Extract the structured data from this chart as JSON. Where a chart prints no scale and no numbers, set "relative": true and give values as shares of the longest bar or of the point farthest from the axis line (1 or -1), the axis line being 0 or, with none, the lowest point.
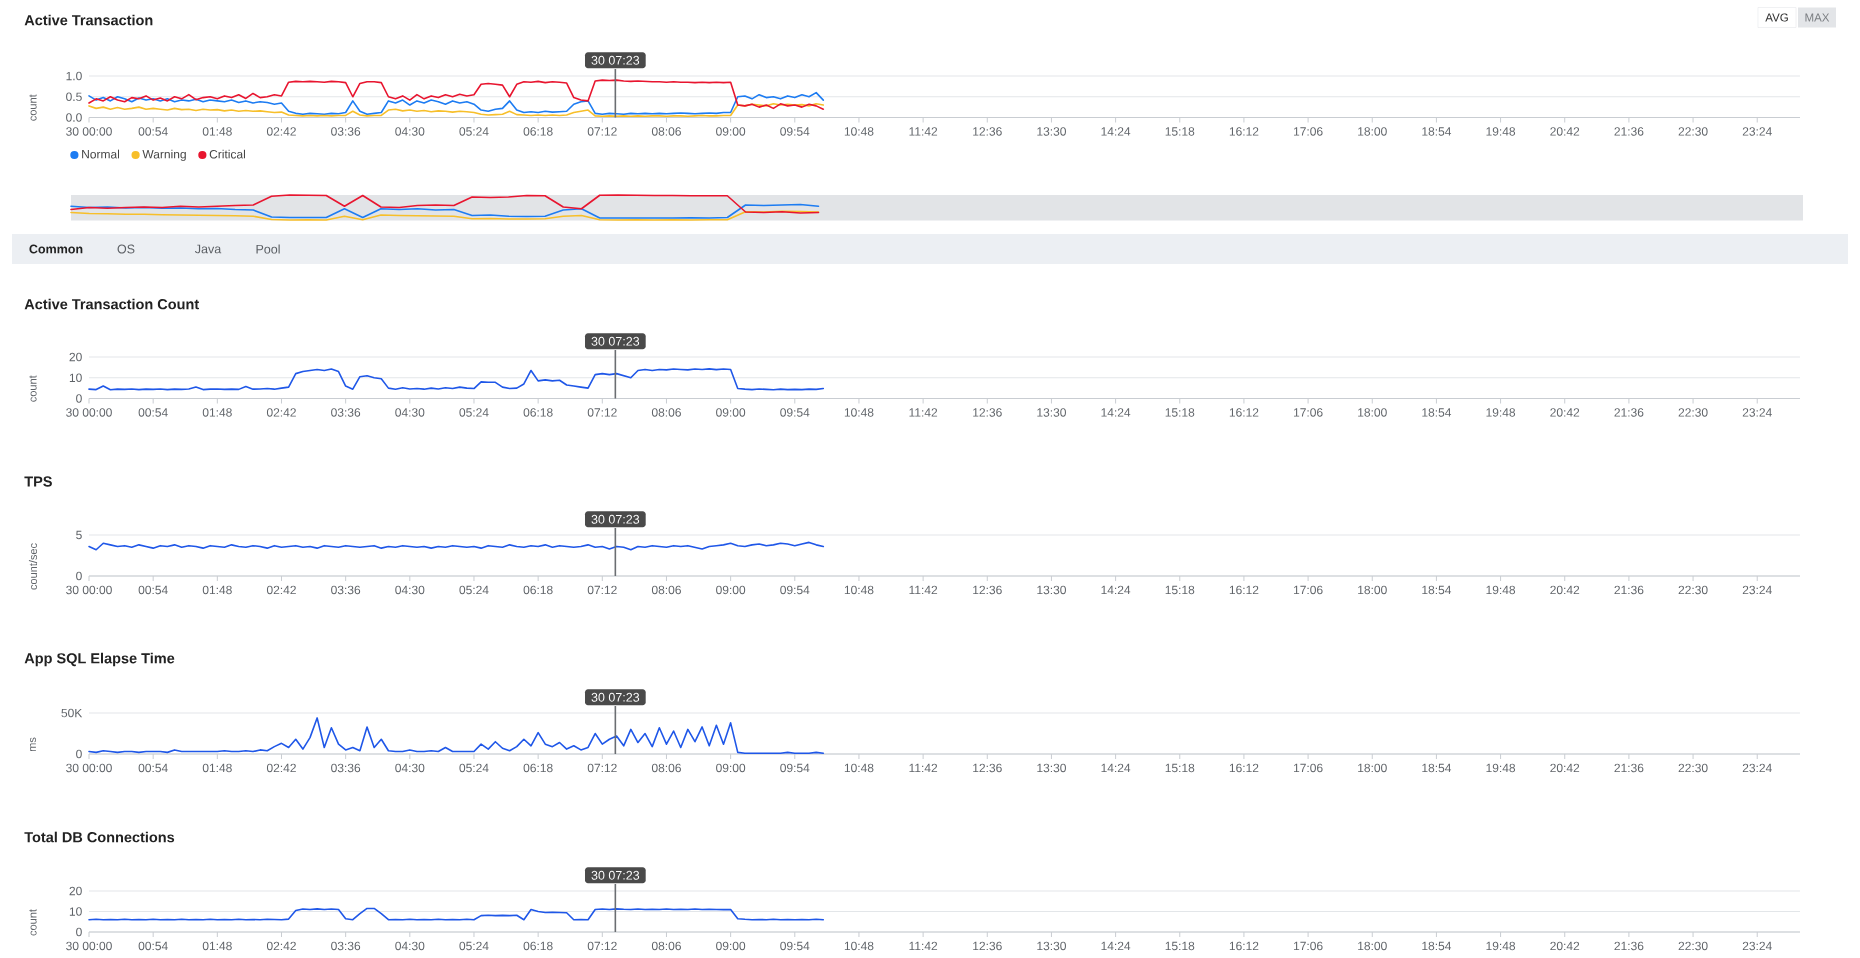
{
  "chart_data": [
    {
      "type": "line",
      "title": "Active Transaction",
      "ylabel": "count",
      "x": [
        0,
        0.1,
        0.2,
        0.3,
        0.4,
        0.5,
        0.6,
        0.7,
        0.8,
        0.9,
        1,
        1.1,
        1.2,
        1.3,
        1.4,
        1.5,
        1.6,
        1.7,
        1.8,
        1.9,
        2,
        2.1,
        2.2,
        2.3,
        2.4,
        2.5,
        2.6,
        2.7,
        2.8,
        2.9,
        3,
        3.1,
        3.2,
        3.3,
        3.4,
        3.5,
        3.6,
        3.7,
        3.8,
        3.9,
        4,
        4.1,
        4.2,
        4.3,
        4.4,
        4.5,
        4.6,
        4.7,
        4.8,
        4.9,
        5,
        5.1,
        5.2,
        5.3,
        5.4,
        5.5,
        5.6,
        5.7,
        5.8,
        5.9,
        6,
        6.1,
        6.2,
        6.3,
        6.4,
        6.5,
        6.6,
        6.7,
        6.8,
        6.9,
        7,
        7.1,
        7.2,
        7.3,
        7.4,
        7.5,
        7.6,
        7.7,
        7.8,
        7.9,
        8,
        8.1,
        8.2,
        8.3,
        8.4,
        8.5,
        8.6,
        8.7,
        8.8,
        8.9,
        9,
        9.1,
        9.2,
        9.3,
        9.4,
        9.5,
        9.6,
        9.7,
        9.8,
        9.9,
        10,
        10.1,
        10.2,
        10.3
      ],
      "xlim": [
        0,
        24
      ],
      "xticks": [
        {
          "value": 0,
          "label": "30 00:00"
        },
        {
          "value": 0.9,
          "label": "00:54"
        },
        {
          "value": 1.8,
          "label": "01:48"
        },
        {
          "value": 2.7,
          "label": "02:42"
        },
        {
          "value": 3.6,
          "label": "03:36"
        },
        {
          "value": 4.5,
          "label": "04:30"
        },
        {
          "value": 5.4,
          "label": "05:24"
        },
        {
          "value": 6.3,
          "label": "06:18"
        },
        {
          "value": 7.2,
          "label": "07:12"
        },
        {
          "value": 8.1,
          "label": "08:06"
        },
        {
          "value": 9,
          "label": "09:00"
        },
        {
          "value": 9.9,
          "label": "09:54"
        },
        {
          "value": 10.8,
          "label": "10:48"
        },
        {
          "value": 11.7,
          "label": "11:42"
        },
        {
          "value": 12.6,
          "label": "12:36"
        },
        {
          "value": 13.5,
          "label": "13:30"
        },
        {
          "value": 14.4,
          "label": "14:24"
        },
        {
          "value": 15.3,
          "label": "15:18"
        },
        {
          "value": 16.2,
          "label": "16:12"
        },
        {
          "value": 17.1,
          "label": "17:06"
        },
        {
          "value": 18,
          "label": "18:00"
        },
        {
          "value": 18.9,
          "label": "18:54"
        },
        {
          "value": 19.8,
          "label": "19:48"
        },
        {
          "value": 20.7,
          "label": "20:42"
        },
        {
          "value": 21.6,
          "label": "21:36"
        },
        {
          "value": 22.5,
          "label": "22:30"
        },
        {
          "value": 23.4,
          "label": "23:24"
        }
      ],
      "ylim": [
        0,
        1
      ],
      "yticks": [
        {
          "value": 0,
          "label": "0.0"
        },
        0.5,
        {
          "value": 1,
          "label": "1.0"
        }
      ],
      "grid": "y",
      "legend": "bottom left",
      "series": [
        {
          "name": "Normal",
          "color": "#1d7cf2",
          "values": [
            0.52,
            0.42,
            0.48,
            0.4,
            0.5,
            0.45,
            0.38,
            0.47,
            0.42,
            0.45,
            0.4,
            0.45,
            0.38,
            0.42,
            0.4,
            0.44,
            0.38,
            0.42,
            0.4,
            0.38,
            0.42,
            0.36,
            0.4,
            0.35,
            0.38,
            0.36,
            0.32,
            0.35,
            0.15,
            0.1,
            0.08,
            0.1,
            0.09,
            0.08,
            0.1,
            0.09,
            0.12,
            0.4,
            0.15,
            0.08,
            0.1,
            0.12,
            0.4,
            0.35,
            0.42,
            0.3,
            0.4,
            0.35,
            0.42,
            0.38,
            0.32,
            0.4,
            0.35,
            0.38,
            0.32,
            0.18,
            0.15,
            0.2,
            0.22,
            0.4,
            0.18,
            0.12,
            0.14,
            0.12,
            0.15,
            0.13,
            0.14,
            0.15,
            0.32,
            0.38,
            0.4,
            0.1,
            0.08,
            0.1,
            0.09,
            0.08,
            0.1,
            0.09,
            0.1,
            0.09,
            0.1,
            0.09,
            0.1,
            0.11,
            0.1,
            0.09,
            0.1,
            0.11,
            0.1,
            0.12,
            0.12,
            0.5,
            0.52,
            0.45,
            0.55,
            0.48,
            0.5,
            0.45,
            0.52,
            0.48,
            0.55,
            0.5,
            0.6,
            0.42
          ]
        },
        {
          "name": "Warning",
          "color": "#f7bf2a",
          "values": [
            0.28,
            0.22,
            0.25,
            0.2,
            0.24,
            0.2,
            0.22,
            0.25,
            0.2,
            0.22,
            0.2,
            0.18,
            0.22,
            0.19,
            0.2,
            0.17,
            0.2,
            0.18,
            0.19,
            0.16,
            0.18,
            0.15,
            0.17,
            0.15,
            0.16,
            0.14,
            0.12,
            0.13,
            0.06,
            0.05,
            0.04,
            0.05,
            0.04,
            0.05,
            0.04,
            0.05,
            0.05,
            0.15,
            0.06,
            0.04,
            0.05,
            0.05,
            0.18,
            0.2,
            0.16,
            0.18,
            0.15,
            0.17,
            0.14,
            0.16,
            0.15,
            0.13,
            0.15,
            0.14,
            0.12,
            0.08,
            0.06,
            0.07,
            0.08,
            0.15,
            0.07,
            0.06,
            0.05,
            0.06,
            0.05,
            0.06,
            0.05,
            0.06,
            0.12,
            0.15,
            0.18,
            0.04,
            0.03,
            0.04,
            0.03,
            0.04,
            0.03,
            0.04,
            0.03,
            0.04,
            0.04,
            0.03,
            0.04,
            0.04,
            0.03,
            0.04,
            0.05,
            0.04,
            0.04,
            0.05,
            0.05,
            0.3,
            0.28,
            0.32,
            0.3,
            0.28,
            0.33,
            0.3,
            0.32,
            0.3,
            0.31,
            0.28,
            0.33,
            0.3
          ]
        },
        {
          "name": "Critical",
          "color": "#e8152f",
          "values": [
            0.35,
            0.45,
            0.4,
            0.5,
            0.42,
            0.38,
            0.48,
            0.45,
            0.52,
            0.42,
            0.47,
            0.4,
            0.5,
            0.45,
            0.55,
            0.43,
            0.48,
            0.5,
            0.45,
            0.52,
            0.48,
            0.55,
            0.46,
            0.58,
            0.48,
            0.5,
            0.55,
            0.52,
            0.85,
            0.87,
            0.86,
            0.87,
            0.86,
            0.85,
            0.87,
            0.86,
            0.84,
            0.5,
            0.82,
            0.86,
            0.86,
            0.84,
            0.5,
            0.45,
            0.52,
            0.42,
            0.55,
            0.45,
            0.52,
            0.48,
            0.55,
            0.5,
            0.56,
            0.52,
            0.55,
            0.8,
            0.82,
            0.8,
            0.78,
            0.5,
            0.8,
            0.86,
            0.85,
            0.87,
            0.84,
            0.86,
            0.85,
            0.83,
            0.48,
            0.42,
            0.4,
            0.88,
            0.9,
            0.89,
            0.9,
            0.88,
            0.87,
            0.88,
            0.87,
            0.86,
            0.86,
            0.85,
            0.86,
            0.85,
            0.85,
            0.84,
            0.85,
            0.84,
            0.85,
            0.84,
            0.85,
            0.3,
            0.28,
            0.32,
            0.25,
            0.3,
            0.22,
            0.33,
            0.28,
            0.3,
            0.25,
            0.32,
            0.28,
            0.2
          ]
        }
      ],
      "ref_lines": [
        {
          "axis": "x",
          "value": 7.383,
          "label": "30 07:23",
          "color": "#6b6e72"
        }
      ],
      "annotations": [
        "AVG",
        "MAX"
      ]
    },
    {
      "type": "line",
      "relative": true,
      "tick_labels": false,
      "categories": [
        null,
        null,
        null,
        null,
        null,
        null,
        null,
        null,
        null,
        null,
        null,
        null,
        null,
        null,
        null,
        null,
        null,
        null,
        null,
        null,
        null,
        null,
        null,
        null,
        null,
        null,
        null,
        null,
        null,
        null,
        null,
        null,
        null,
        null,
        null,
        null,
        null,
        null,
        null,
        null,
        null,
        null,
        null,
        null,
        null,
        null,
        null,
        null,
        null,
        null,
        null,
        null,
        null,
        null,
        null,
        null,
        null,
        null,
        null,
        null,
        null,
        null,
        null,
        null,
        null,
        null,
        null,
        null,
        null,
        null,
        null,
        null,
        null,
        null,
        null,
        null,
        null,
        null,
        null,
        null,
        null,
        null,
        null,
        null,
        null,
        null,
        null,
        null,
        null,
        null,
        null,
        null,
        null,
        null,
        null,
        null
      ],
      "series": [
        {
          "color": "#1d7cf2",
          "values": [
            0.55,
            0.5,
            0.52,
            0.48,
            0.5,
            0.47,
            0.48,
            0.45,
            0.46,
            0.42,
            0.4,
            0.12,
            0.1,
            0.1,
            0.1,
            0.45,
            0.1,
            0.45,
            0.42,
            0.45,
            0.4,
            0.42,
            0.18,
            0.2,
            0.15,
            0.14,
            0.15,
            0.4,
            0.45,
            0.08,
            0.08,
            0.08,
            0.08,
            0.08,
            0.09,
            0.08,
            0.1,
            0.6,
            0.58,
            0.6,
            0.62,
            0.55,
            null,
            null,
            null,
            null,
            null,
            null,
            null,
            null,
            null,
            null,
            null,
            null,
            null,
            null,
            null,
            null,
            null,
            null,
            null,
            null,
            null,
            null,
            null,
            null,
            null,
            null,
            null,
            null,
            null,
            null,
            null,
            null,
            null,
            null,
            null,
            null,
            null,
            null,
            null,
            null,
            null,
            null,
            null,
            null,
            null,
            null,
            null,
            null,
            null,
            null,
            null,
            null,
            null,
            null
          ]
        },
        {
          "color": "#f7bf2a",
          "values": [
            0.3,
            0.26,
            0.25,
            0.23,
            0.23,
            0.21,
            0.2,
            0.19,
            0.18,
            0.17,
            0.15,
            0.02,
            0,
            0.01,
            0,
            0.15,
            0.01,
            0.2,
            0.18,
            0.17,
            0.16,
            0.15,
            0.05,
            0.06,
            0.04,
            0.04,
            0.05,
            0.15,
            0.18,
            0.01,
            0,
            0.01,
            0,
            0.01,
            0,
            0.01,
            0.01,
            0.33,
            0.32,
            0.35,
            0.34,
            0.32,
            null,
            null,
            null,
            null,
            null,
            null,
            null,
            null,
            null,
            null,
            null,
            null,
            null,
            null,
            null,
            null,
            null,
            null,
            null,
            null,
            null,
            null,
            null,
            null,
            null,
            null,
            null,
            null,
            null,
            null,
            null,
            null,
            null,
            null,
            null,
            null,
            null,
            null,
            null,
            null,
            null,
            null,
            null,
            null,
            null,
            null,
            null,
            null,
            null,
            null,
            null,
            null,
            null,
            null
          ]
        },
        {
          "color": "#e8152f",
          "values": [
            0.42,
            0.5,
            0.47,
            0.5,
            0.52,
            0.5,
            0.55,
            0.52,
            0.55,
            0.58,
            0.6,
            0.95,
            1,
            0.99,
            0.98,
            0.55,
            0.98,
            0.52,
            0.5,
            0.58,
            0.6,
            0.58,
            0.92,
            0.9,
            0.92,
            0.98,
            0.97,
            0.52,
            0.45,
            0.99,
            1,
            0.99,
            0.98,
            0.98,
            0.97,
            0.97,
            0.97,
            0.32,
            0.3,
            0.33,
            0.28,
            0.3,
            null,
            null,
            null,
            null,
            null,
            null,
            null,
            null,
            null,
            null,
            null,
            null,
            null,
            null,
            null,
            null,
            null,
            null,
            null,
            null,
            null,
            null,
            null,
            null,
            null,
            null,
            null,
            null,
            null,
            null,
            null,
            null,
            null,
            null,
            null,
            null,
            null,
            null,
            null,
            null,
            null,
            null,
            null,
            null,
            null,
            null,
            null,
            null,
            null,
            null,
            null,
            null,
            null,
            null
          ]
        }
      ]
    },
    {
      "type": "line",
      "title": "Active Transaction Count",
      "ylabel": "count",
      "x": [
        0,
        0.1,
        0.2,
        0.3,
        0.4,
        0.5,
        0.6,
        0.7,
        0.8,
        0.9,
        1,
        1.1,
        1.2,
        1.3,
        1.4,
        1.5,
        1.6,
        1.7,
        1.8,
        1.9,
        2,
        2.1,
        2.2,
        2.3,
        2.4,
        2.5,
        2.6,
        2.7,
        2.8,
        2.9,
        3,
        3.1,
        3.2,
        3.3,
        3.4,
        3.5,
        3.6,
        3.7,
        3.8,
        3.9,
        4,
        4.1,
        4.2,
        4.3,
        4.4,
        4.5,
        4.6,
        4.7,
        4.8,
        4.9,
        5,
        5.1,
        5.2,
        5.3,
        5.4,
        5.5,
        5.6,
        5.7,
        5.8,
        5.9,
        6,
        6.1,
        6.2,
        6.3,
        6.4,
        6.5,
        6.6,
        6.7,
        6.8,
        6.9,
        7,
        7.1,
        7.2,
        7.3,
        7.4,
        7.5,
        7.6,
        7.7,
        7.8,
        7.9,
        8,
        8.1,
        8.2,
        8.3,
        8.4,
        8.5,
        8.6,
        8.7,
        8.8,
        8.9,
        9,
        9.1,
        9.2,
        9.3,
        9.4,
        9.5,
        9.6,
        9.7,
        9.8,
        9.9,
        10,
        10.1,
        10.2,
        10.3
      ],
      "xlim": [
        0,
        24
      ],
      "xticks": [
        {
          "value": 0,
          "label": "30 00:00"
        },
        {
          "value": 0.9,
          "label": "00:54"
        },
        {
          "value": 1.8,
          "label": "01:48"
        },
        {
          "value": 2.7,
          "label": "02:42"
        },
        {
          "value": 3.6,
          "label": "03:36"
        },
        {
          "value": 4.5,
          "label": "04:30"
        },
        {
          "value": 5.4,
          "label": "05:24"
        },
        {
          "value": 6.3,
          "label": "06:18"
        },
        {
          "value": 7.2,
          "label": "07:12"
        },
        {
          "value": 8.1,
          "label": "08:06"
        },
        {
          "value": 9,
          "label": "09:00"
        },
        {
          "value": 9.9,
          "label": "09:54"
        },
        {
          "value": 10.8,
          "label": "10:48"
        },
        {
          "value": 11.7,
          "label": "11:42"
        },
        {
          "value": 12.6,
          "label": "12:36"
        },
        {
          "value": 13.5,
          "label": "13:30"
        },
        {
          "value": 14.4,
          "label": "14:24"
        },
        {
          "value": 15.3,
          "label": "15:18"
        },
        {
          "value": 16.2,
          "label": "16:12"
        },
        {
          "value": 17.1,
          "label": "17:06"
        },
        {
          "value": 18,
          "label": "18:00"
        },
        {
          "value": 18.9,
          "label": "18:54"
        },
        {
          "value": 19.8,
          "label": "19:48"
        },
        {
          "value": 20.7,
          "label": "20:42"
        },
        {
          "value": 21.6,
          "label": "21:36"
        },
        {
          "value": 22.5,
          "label": "22:30"
        },
        {
          "value": 23.4,
          "label": "23:24"
        }
      ],
      "ylim": [
        0,
        20
      ],
      "yticks": [
        0,
        10,
        20
      ],
      "grid": "y",
      "series": [
        {
          "color": "#1f57e8",
          "values": [
            4.5,
            4.3,
            6.0,
            4.2,
            4.5,
            4.4,
            4.6,
            4.3,
            4.5,
            4.4,
            4.6,
            4.3,
            4.5,
            4.4,
            4.6,
            5.5,
            4.3,
            4.5,
            4.6,
            4.4,
            4.5,
            4.4,
            5.8,
            4.5,
            4.6,
            4.8,
            4.5,
            5.0,
            5.5,
            12.0,
            13.0,
            13.5,
            14.0,
            13.5,
            14.2,
            13.0,
            6.0,
            4.5,
            10.5,
            11.0,
            10.0,
            9.5,
            5.0,
            4.5,
            5.2,
            4.6,
            4.8,
            4.5,
            5.0,
            4.6,
            5.2,
            4.8,
            5.5,
            5.0,
            4.8,
            8.0,
            7.8,
            7.8,
            5.5,
            4.8,
            5.0,
            7.0,
            13.5,
            8.5,
            9.0,
            8.5,
            8.8,
            6.5,
            6.0,
            5.5,
            5.0,
            11.5,
            12.0,
            11.5,
            12.0,
            11.0,
            10.0,
            13.5,
            14.0,
            13.5,
            14.0,
            13.8,
            14.2,
            14.0,
            13.8,
            14.2,
            14.0,
            14.3,
            13.9,
            14.2,
            14.0,
            4.8,
            4.5,
            4.3,
            4.6,
            4.4,
            4.2,
            4.5,
            4.3,
            4.4,
            4.3,
            4.5,
            4.4,
            4.8
          ]
        }
      ],
      "ref_lines": [
        {
          "axis": "x",
          "value": 7.383,
          "label": "30 07:23",
          "color": "#6b6e72"
        }
      ],
      "annotations": [
        "Common",
        "OS",
        "Java",
        "Pool"
      ]
    },
    {
      "type": "line",
      "title": "TPS",
      "ylabel": "count/sec",
      "x": [
        0,
        0.1,
        0.2,
        0.3,
        0.4,
        0.5,
        0.6,
        0.7,
        0.8,
        0.9,
        1,
        1.1,
        1.2,
        1.3,
        1.4,
        1.5,
        1.6,
        1.7,
        1.8,
        1.9,
        2,
        2.1,
        2.2,
        2.3,
        2.4,
        2.5,
        2.6,
        2.7,
        2.8,
        2.9,
        3,
        3.1,
        3.2,
        3.3,
        3.4,
        3.5,
        3.6,
        3.7,
        3.8,
        3.9,
        4,
        4.1,
        4.2,
        4.3,
        4.4,
        4.5,
        4.6,
        4.7,
        4.8,
        4.9,
        5,
        5.1,
        5.2,
        5.3,
        5.4,
        5.5,
        5.6,
        5.7,
        5.8,
        5.9,
        6,
        6.1,
        6.2,
        6.3,
        6.4,
        6.5,
        6.6,
        6.7,
        6.8,
        6.9,
        7,
        7.1,
        7.2,
        7.3,
        7.4,
        7.5,
        7.6,
        7.7,
        7.8,
        7.9,
        8,
        8.1,
        8.2,
        8.3,
        8.4,
        8.5,
        8.6,
        8.7,
        8.8,
        8.9,
        9,
        9.1,
        9.2,
        9.3,
        9.4,
        9.5,
        9.6,
        9.7,
        9.8,
        9.9,
        10,
        10.1,
        10.2,
        10.3
      ],
      "xlim": [
        0,
        24
      ],
      "xticks": [
        {
          "value": 0,
          "label": "30 00:00"
        },
        {
          "value": 0.9,
          "label": "00:54"
        },
        {
          "value": 1.8,
          "label": "01:48"
        },
        {
          "value": 2.7,
          "label": "02:42"
        },
        {
          "value": 3.6,
          "label": "03:36"
        },
        {
          "value": 4.5,
          "label": "04:30"
        },
        {
          "value": 5.4,
          "label": "05:24"
        },
        {
          "value": 6.3,
          "label": "06:18"
        },
        {
          "value": 7.2,
          "label": "07:12"
        },
        {
          "value": 8.1,
          "label": "08:06"
        },
        {
          "value": 9,
          "label": "09:00"
        },
        {
          "value": 9.9,
          "label": "09:54"
        },
        {
          "value": 10.8,
          "label": "10:48"
        },
        {
          "value": 11.7,
          "label": "11:42"
        },
        {
          "value": 12.6,
          "label": "12:36"
        },
        {
          "value": 13.5,
          "label": "13:30"
        },
        {
          "value": 14.4,
          "label": "14:24"
        },
        {
          "value": 15.3,
          "label": "15:18"
        },
        {
          "value": 16.2,
          "label": "16:12"
        },
        {
          "value": 17.1,
          "label": "17:06"
        },
        {
          "value": 18,
          "label": "18:00"
        },
        {
          "value": 18.9,
          "label": "18:54"
        },
        {
          "value": 19.8,
          "label": "19:48"
        },
        {
          "value": 20.7,
          "label": "20:42"
        },
        {
          "value": 21.6,
          "label": "21:36"
        },
        {
          "value": 22.5,
          "label": "22:30"
        },
        {
          "value": 23.4,
          "label": "23:24"
        }
      ],
      "ylim": [
        0,
        5
      ],
      "yticks": [
        0,
        5
      ],
      "grid": "y",
      "series": [
        {
          "color": "#1f57e8",
          "values": [
            3.6,
            3.2,
            4.0,
            3.8,
            3.6,
            3.7,
            3.5,
            3.8,
            3.6,
            3.4,
            3.7,
            3.6,
            3.8,
            3.5,
            3.7,
            3.6,
            3.4,
            3.7,
            3.6,
            3.5,
            3.8,
            3.6,
            3.5,
            3.7,
            3.6,
            3.4,
            3.7,
            3.5,
            3.6,
            3.7,
            3.5,
            3.6,
            3.4,
            3.7,
            3.6,
            3.5,
            3.7,
            3.6,
            3.5,
            3.6,
            3.7,
            3.4,
            3.6,
            3.5,
            3.7,
            3.6,
            3.5,
            3.6,
            3.4,
            3.6,
            3.5,
            3.7,
            3.6,
            3.5,
            3.6,
            3.4,
            3.7,
            3.6,
            3.5,
            3.8,
            3.6,
            3.5,
            3.7,
            3.6,
            3.8,
            3.5,
            3.7,
            3.6,
            3.5,
            3.6,
            3.8,
            3.5,
            3.6,
            3.3,
            3.6,
            3.5,
            3.2,
            3.6,
            3.5,
            3.7,
            3.6,
            3.5,
            3.7,
            3.6,
            3.7,
            3.5,
            3.3,
            3.6,
            3.7,
            3.8,
            4.0,
            3.7,
            3.6,
            3.8,
            3.9,
            3.7,
            3.8,
            4.0,
            3.9,
            3.7,
            3.9,
            4.1,
            3.8,
            3.6
          ]
        }
      ],
      "ref_lines": [
        {
          "axis": "x",
          "value": 7.383,
          "label": "30 07:23",
          "color": "#6b6e72"
        }
      ]
    },
    {
      "type": "line",
      "title": "App SQL Elapse Time",
      "ylabel": "ms",
      "x": [
        0,
        0.1,
        0.2,
        0.3,
        0.4,
        0.5,
        0.6,
        0.7,
        0.8,
        0.9,
        1,
        1.1,
        1.2,
        1.3,
        1.4,
        1.5,
        1.6,
        1.7,
        1.8,
        1.9,
        2,
        2.1,
        2.2,
        2.3,
        2.4,
        2.5,
        2.6,
        2.7,
        2.8,
        2.9,
        3,
        3.1,
        3.2,
        3.3,
        3.4,
        3.5,
        3.6,
        3.7,
        3.8,
        3.9,
        4,
        4.1,
        4.2,
        4.3,
        4.4,
        4.5,
        4.6,
        4.7,
        4.8,
        4.9,
        5,
        5.1,
        5.2,
        5.3,
        5.4,
        5.5,
        5.6,
        5.7,
        5.8,
        5.9,
        6,
        6.1,
        6.2,
        6.3,
        6.4,
        6.5,
        6.6,
        6.7,
        6.8,
        6.9,
        7,
        7.1,
        7.2,
        7.3,
        7.4,
        7.5,
        7.6,
        7.7,
        7.8,
        7.9,
        8,
        8.1,
        8.2,
        8.3,
        8.4,
        8.5,
        8.6,
        8.7,
        8.8,
        8.9,
        9,
        9.1,
        9.2,
        9.3,
        9.4,
        9.5,
        9.6,
        9.7,
        9.8,
        9.9,
        10,
        10.1,
        10.2,
        10.3
      ],
      "xlim": [
        0,
        24
      ],
      "xticks": [
        {
          "value": 0,
          "label": "30 00:00"
        },
        {
          "value": 0.9,
          "label": "00:54"
        },
        {
          "value": 1.8,
          "label": "01:48"
        },
        {
          "value": 2.7,
          "label": "02:42"
        },
        {
          "value": 3.6,
          "label": "03:36"
        },
        {
          "value": 4.5,
          "label": "04:30"
        },
        {
          "value": 5.4,
          "label": "05:24"
        },
        {
          "value": 6.3,
          "label": "06:18"
        },
        {
          "value": 7.2,
          "label": "07:12"
        },
        {
          "value": 8.1,
          "label": "08:06"
        },
        {
          "value": 9,
          "label": "09:00"
        },
        {
          "value": 9.9,
          "label": "09:54"
        },
        {
          "value": 10.8,
          "label": "10:48"
        },
        {
          "value": 11.7,
          "label": "11:42"
        },
        {
          "value": 12.6,
          "label": "12:36"
        },
        {
          "value": 13.5,
          "label": "13:30"
        },
        {
          "value": 14.4,
          "label": "14:24"
        },
        {
          "value": 15.3,
          "label": "15:18"
        },
        {
          "value": 16.2,
          "label": "16:12"
        },
        {
          "value": 17.1,
          "label": "17:06"
        },
        {
          "value": 18,
          "label": "18:00"
        },
        {
          "value": 18.9,
          "label": "18:54"
        },
        {
          "value": 19.8,
          "label": "19:48"
        },
        {
          "value": 20.7,
          "label": "20:42"
        },
        {
          "value": 21.6,
          "label": "21:36"
        },
        {
          "value": 22.5,
          "label": "22:30"
        },
        {
          "value": 23.4,
          "label": "23:24"
        }
      ],
      "ylim": [
        0,
        50000
      ],
      "yticks": [
        0,
        {
          "value": 50000,
          "label": "50K"
        }
      ],
      "grid": "y",
      "series": [
        {
          "color": "#1f57e8",
          "values": [
            3000,
            2000,
            4000,
            3000,
            2000,
            3000,
            3000,
            2000,
            3000,
            3000,
            3000,
            2000,
            5000,
            3000,
            3000,
            3000,
            3000,
            3000,
            3000,
            4000,
            3000,
            3000,
            4000,
            3000,
            5000,
            4000,
            9000,
            13000,
            8000,
            18000,
            6000,
            20000,
            44000,
            8000,
            32000,
            12000,
            5000,
            8000,
            4000,
            33000,
            8000,
            18000,
            4000,
            3000,
            3000,
            5000,
            3000,
            3000,
            4000,
            3000,
            8000,
            3000,
            3000,
            3000,
            3000,
            12000,
            6000,
            15000,
            7000,
            4000,
            9000,
            18000,
            10000,
            26000,
            12000,
            9000,
            14000,
            6000,
            10000,
            5000,
            8000,
            25000,
            12000,
            18000,
            22000,
            10000,
            30000,
            14000,
            25000,
            9000,
            32000,
            12000,
            28000,
            8000,
            30000,
            15000,
            33000,
            10000,
            35000,
            12000,
            38000,
            2000,
            1000,
            1000,
            1000,
            1000,
            1000,
            1000,
            2000,
            1000,
            1000,
            1000,
            2000,
            1000
          ]
        }
      ],
      "ref_lines": [
        {
          "axis": "x",
          "value": 7.383,
          "label": "30 07:23",
          "color": "#6b6e72"
        }
      ]
    },
    {
      "type": "line",
      "title": "Total DB Connections",
      "ylabel": "count",
      "x": [
        0,
        0.1,
        0.2,
        0.3,
        0.4,
        0.5,
        0.6,
        0.7,
        0.8,
        0.9,
        1,
        1.1,
        1.2,
        1.3,
        1.4,
        1.5,
        1.6,
        1.7,
        1.8,
        1.9,
        2,
        2.1,
        2.2,
        2.3,
        2.4,
        2.5,
        2.6,
        2.7,
        2.8,
        2.9,
        3,
        3.1,
        3.2,
        3.3,
        3.4,
        3.5,
        3.6,
        3.7,
        3.8,
        3.9,
        4,
        4.1,
        4.2,
        4.3,
        4.4,
        4.5,
        4.6,
        4.7,
        4.8,
        4.9,
        5,
        5.1,
        5.2,
        5.3,
        5.4,
        5.5,
        5.6,
        5.7,
        5.8,
        5.9,
        6,
        6.1,
        6.2,
        6.3,
        6.4,
        6.5,
        6.6,
        6.7,
        6.8,
        6.9,
        7,
        7.1,
        7.2,
        7.3,
        7.4,
        7.5,
        7.6,
        7.7,
        7.8,
        7.9,
        8,
        8.1,
        8.2,
        8.3,
        8.4,
        8.5,
        8.6,
        8.7,
        8.8,
        8.9,
        9,
        9.1,
        9.2,
        9.3,
        9.4,
        9.5,
        9.6,
        9.7,
        9.8,
        9.9,
        10,
        10.1,
        10.2,
        10.3
      ],
      "xlim": [
        0,
        24
      ],
      "xticks": [
        {
          "value": 0,
          "label": "30 00:00"
        },
        {
          "value": 0.9,
          "label": "00:54"
        },
        {
          "value": 1.8,
          "label": "01:48"
        },
        {
          "value": 2.7,
          "label": "02:42"
        },
        {
          "value": 3.6,
          "label": "03:36"
        },
        {
          "value": 4.5,
          "label": "04:30"
        },
        {
          "value": 5.4,
          "label": "05:24"
        },
        {
          "value": 6.3,
          "label": "06:18"
        },
        {
          "value": 7.2,
          "label": "07:12"
        },
        {
          "value": 8.1,
          "label": "08:06"
        },
        {
          "value": 9,
          "label": "09:00"
        },
        {
          "value": 9.9,
          "label": "09:54"
        },
        {
          "value": 10.8,
          "label": "10:48"
        },
        {
          "value": 11.7,
          "label": "11:42"
        },
        {
          "value": 12.6,
          "label": "12:36"
        },
        {
          "value": 13.5,
          "label": "13:30"
        },
        {
          "value": 14.4,
          "label": "14:24"
        },
        {
          "value": 15.3,
          "label": "15:18"
        },
        {
          "value": 16.2,
          "label": "16:12"
        },
        {
          "value": 17.1,
          "label": "17:06"
        },
        {
          "value": 18,
          "label": "18:00"
        },
        {
          "value": 18.9,
          "label": "18:54"
        },
        {
          "value": 19.8,
          "label": "19:48"
        },
        {
          "value": 20.7,
          "label": "20:42"
        },
        {
          "value": 21.6,
          "label": "21:36"
        },
        {
          "value": 22.5,
          "label": "22:30"
        },
        {
          "value": 23.4,
          "label": "23:24"
        }
      ],
      "ylim": [
        0,
        20
      ],
      "yticks": [
        0,
        10,
        20
      ],
      "grid": "y",
      "series": [
        {
          "color": "#1f57e8",
          "values": [
            6.0,
            6.2,
            6.0,
            6.1,
            6.0,
            6.2,
            6.0,
            6.1,
            6.0,
            6.2,
            6.0,
            6.1,
            6.0,
            6.2,
            6.0,
            6.1,
            6.0,
            6.2,
            6.0,
            6.1,
            6.0,
            6.2,
            6.0,
            6.1,
            6.0,
            6.2,
            6.1,
            6.0,
            6.3,
            10.5,
            11.2,
            11.0,
            11.3,
            11.0,
            11.2,
            11.0,
            6.5,
            6.0,
            9.0,
            11.5,
            11.5,
            9.0,
            6.0,
            6.1,
            6.0,
            6.2,
            6.0,
            6.1,
            6.0,
            6.2,
            6.0,
            6.1,
            6.0,
            6.2,
            6.0,
            8.0,
            8.2,
            8.0,
            8.1,
            8.0,
            8.2,
            6.0,
            11.0,
            10.0,
            9.5,
            9.6,
            9.5,
            9.4,
            6.0,
            6.1,
            6.0,
            11.0,
            11.2,
            11.0,
            11.3,
            11.1,
            11.0,
            11.2,
            11.0,
            11.1,
            11.0,
            11.2,
            11.0,
            11.1,
            11.0,
            11.2,
            11.0,
            11.1,
            11.0,
            10.9,
            11.0,
            6.5,
            6.2,
            6.0,
            6.1,
            6.0,
            6.2,
            6.0,
            6.1,
            6.0,
            6.1,
            6.0,
            6.2,
            6.0
          ]
        }
      ],
      "ref_lines": [
        {
          "axis": "x",
          "value": 7.383,
          "label": "30 07:23",
          "color": "#6b6e72"
        }
      ]
    }
  ]
}
